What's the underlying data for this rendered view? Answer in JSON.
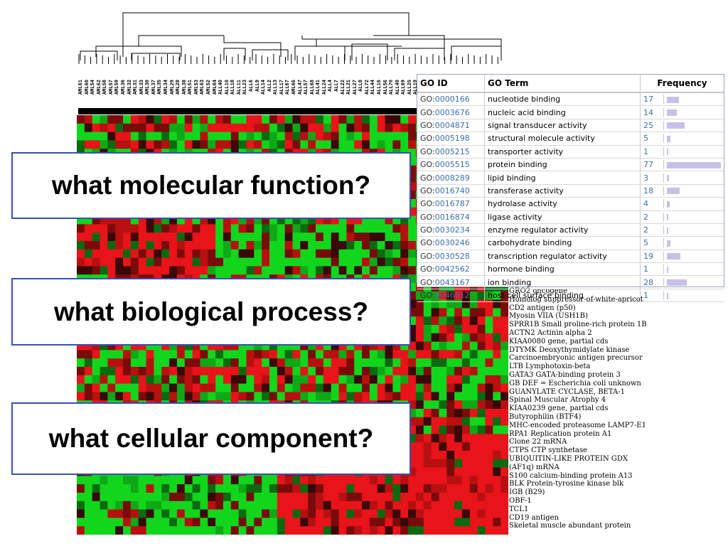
{
  "questions": {
    "molecular": "what molecular function?",
    "biological": "what biological process?",
    "cellular": "what cellular component?"
  },
  "go_table": {
    "headers": {
      "id": "GO ID",
      "term": "GO Term",
      "frequency": "Frequency"
    },
    "rows": [
      {
        "prefix": "GO:",
        "num": "0000166",
        "term": "nucleotide binding",
        "freq": 17
      },
      {
        "prefix": "GO:",
        "num": "0003676",
        "term": "nucleic acid binding",
        "freq": 14
      },
      {
        "prefix": "GO:",
        "num": "0004871",
        "term": "signal transducer activity",
        "freq": 25
      },
      {
        "prefix": "GO:",
        "num": "0005198",
        "term": "structural molecule activity",
        "freq": 5
      },
      {
        "prefix": "GO:",
        "num": "0005215",
        "term": "transporter activity",
        "freq": 1
      },
      {
        "prefix": "GO:",
        "num": "0005515",
        "term": "protein binding",
        "freq": 77
      },
      {
        "prefix": "GO:",
        "num": "0008289",
        "term": "lipid binding",
        "freq": 3
      },
      {
        "prefix": "GO:",
        "num": "0016740",
        "term": "transferase activity",
        "freq": 18
      },
      {
        "prefix": "GO:",
        "num": "0016787",
        "term": "hydrolase activity",
        "freq": 4
      },
      {
        "prefix": "GO:",
        "num": "0016874",
        "term": "ligase activity",
        "freq": 2
      },
      {
        "prefix": "GO:",
        "num": "0030234",
        "term": "enzyme regulator activity",
        "freq": 2
      },
      {
        "prefix": "GO:",
        "num": "0030246",
        "term": "carbohydrate binding",
        "freq": 5
      },
      {
        "prefix": "GO:",
        "num": "0030528",
        "term": "transcription regulator activity",
        "freq": 19
      },
      {
        "prefix": "GO:",
        "num": "0042562",
        "term": "hormone binding",
        "freq": 1
      },
      {
        "prefix": "GO:",
        "num": "0043167",
        "term": "ion binding",
        "freq": 28
      },
      {
        "prefix": "GO:",
        "num": "0046812",
        "term": "host cell surface binding",
        "freq": 1
      }
    ]
  },
  "gene_list": [
    "GRO2 oncogene",
    "Homolog suppressor-of-white-apricot",
    "CD2 antigen (p50)",
    "Myosin VIIA (USH1B)",
    "SPRR1B Small proline-rich protein 1B",
    "ACTN2 Actinin alpha 2",
    "KIAA0080 gene, partial cds",
    "DTYMK Deoxythymidylate kinase",
    "Carcinoembryonic antigen precursor",
    "LTB Lymphotoxin-beta",
    "GATA3 GATA-binding protein 3",
    "GB DEF = Escherichia coli unknown",
    "GUANYLATE CYCLASE, BETA-1",
    "Spinal Muscular Atrophy 4",
    "KIAA0239 gene, partial cds",
    "Butyrophilin (BTF4)",
    "MHC-encoded proteasome LAMP7-E1",
    "RPA1 Replication protein A1",
    "Clone 22 mRNA",
    "CTPS CTP synthetase",
    "UBIQUITIN-LIKE PROTEIN GDX",
    "(AF1q) mRNA",
    "S100 calcium-binding protein A13",
    "BLK Protein-tyrosine kinase blk",
    "IGB (B29)",
    "OBF-1",
    "TCL1",
    "CD19 antigen",
    "Skeletal muscle abundant protein"
  ],
  "sample_labels": [
    "AML61",
    "AML60",
    "AML54",
    "AML62",
    "AML58",
    "AML57",
    "AML59",
    "AML36",
    "AML32",
    "AML31",
    "AML33",
    "AML30",
    "AML37",
    "AML35",
    "AML34",
    "AML29",
    "AML28",
    "AML38",
    "AML51",
    "AML53",
    "AML63",
    "AML52",
    "AML64",
    "ALL40",
    "ALL10",
    "ALL18",
    "ALL11",
    "ALL23",
    "ALL6",
    "ALL9",
    "ALL14",
    "ALL2",
    "ALL13",
    "ALL17",
    "ALL67",
    "AML66",
    "ALL47",
    "ALL57",
    "ALL68",
    "ALL41",
    "ALL24",
    "ALL4",
    "ALL7",
    "ALL22",
    "ALL21",
    "ALL27",
    "ALL8",
    "ALL72",
    "ALL44",
    "ALL16",
    "ALL56",
    "ALL70",
    "ALL49",
    "ALL69",
    "ALL25",
    "ALL19"
  ],
  "colors": {
    "red": "#e8141a",
    "green": "#12d61c",
    "dark": "#3a0808",
    "box_border": "#3b4fb8",
    "freq_bar": "#c9c0e8"
  }
}
